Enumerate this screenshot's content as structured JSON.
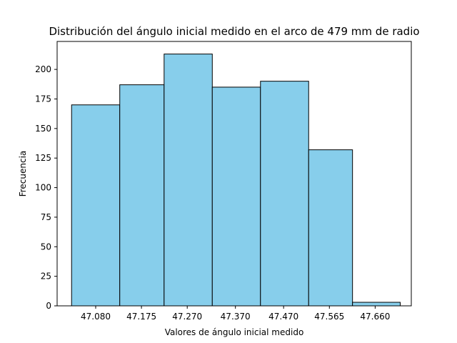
{
  "chart_data": {
    "type": "bar",
    "title": "Distribución del ángulo inicial medido en el arco de 479 mm de radio",
    "xlabel": "Valores de ángulo inicial medido",
    "ylabel": "Frecuencia",
    "categories": [
      "47.080",
      "47.175",
      "47.270",
      "47.370",
      "47.470",
      "47.565",
      "47.660"
    ],
    "bins": [
      {
        "start": 47.03,
        "end": 47.13,
        "value": 170
      },
      {
        "start": 47.13,
        "end": 47.222,
        "value": 187
      },
      {
        "start": 47.222,
        "end": 47.322,
        "value": 213
      },
      {
        "start": 47.322,
        "end": 47.422,
        "value": 185
      },
      {
        "start": 47.422,
        "end": 47.522,
        "value": 190
      },
      {
        "start": 47.522,
        "end": 47.613,
        "value": 132
      },
      {
        "start": 47.613,
        "end": 47.712,
        "value": 3
      }
    ],
    "xticks": [
      47.08,
      47.175,
      47.27,
      47.37,
      47.47,
      47.565,
      47.66
    ],
    "yticks": [
      0,
      25,
      50,
      75,
      100,
      125,
      150,
      175,
      200
    ],
    "xlim": [
      47.0,
      47.735
    ],
    "ylim": [
      0,
      223.65
    ],
    "grid": false,
    "bar_color": "#87ceeb",
    "edge_color": "#000000"
  }
}
